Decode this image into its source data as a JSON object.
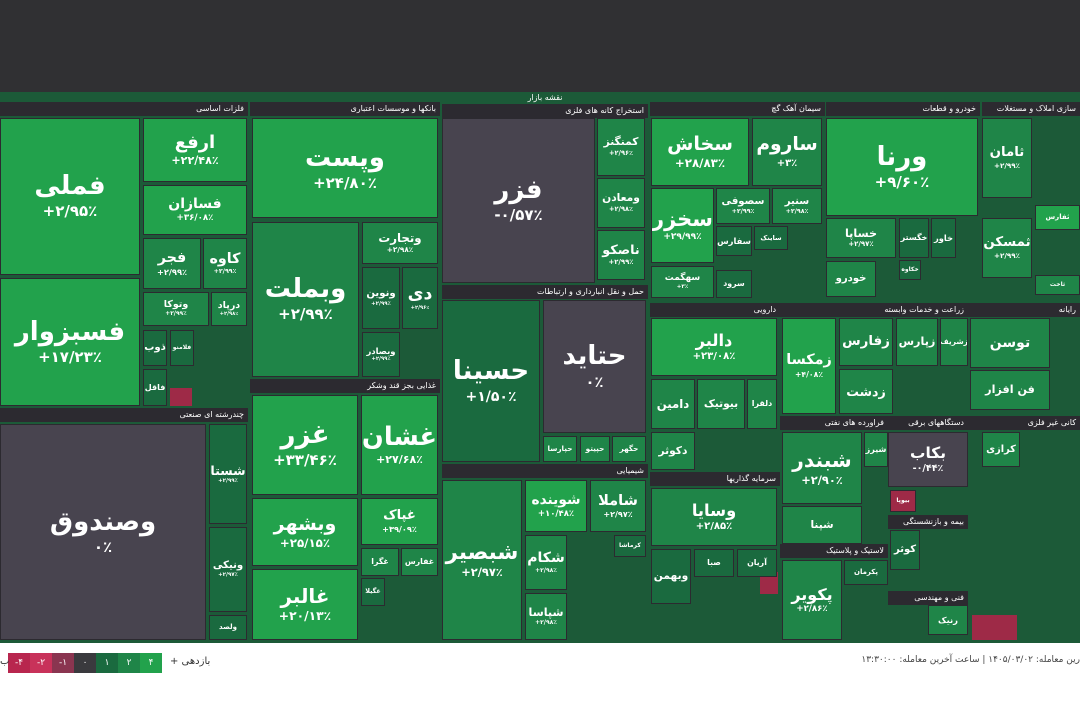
{
  "header": {
    "title": "نقشه بازار"
  },
  "sectors": [
    {
      "name": "فلزات اساسی",
      "tiles": [
        {
          "symbol": "فملی",
          "change": "+۲/۹۵٪"
        },
        {
          "symbol": "فسبزوار",
          "change": "+۱۷/۲۳٪"
        },
        {
          "symbol": "ارفع",
          "change": "+۲۲/۴۸٪"
        },
        {
          "symbol": "فسازان",
          "change": "+۳۶/۰۸٪"
        },
        {
          "symbol": "فجر",
          "change": "+۲/۹۹٪"
        },
        {
          "symbol": "کاوه",
          "change": "+۲/۹۹٪"
        },
        {
          "symbol": "وتوکا",
          "change": "+۲/۹۹٪"
        },
        {
          "symbol": "درپاد",
          "change": "+۲/۹۸٪"
        },
        {
          "symbol": "ذوب"
        },
        {
          "symbol": "فلامنو"
        },
        {
          "symbol": "فاقل"
        }
      ]
    },
    {
      "name": "چندرشته ای صنعتی",
      "tiles": [
        {
          "symbol": "وصندوق",
          "change": "۰٪"
        },
        {
          "symbol": "شستا",
          "change": "+۲/۹۹٪"
        },
        {
          "symbol": "ونیکی",
          "change": "+۲/۹۷٪"
        },
        {
          "symbol": "ولصد"
        }
      ]
    },
    {
      "name": "بانکها و موسسات اعتباری",
      "tiles": [
        {
          "symbol": "وپست",
          "change": "+۲۴/۸۰٪"
        },
        {
          "symbol": "وبملت",
          "change": "+۲/۹۹٪"
        },
        {
          "symbol": "وتجارت",
          "change": "+۲/۹۸٪"
        },
        {
          "symbol": "ونوین",
          "change": "+۲/۹۹٪"
        },
        {
          "symbol": "دی",
          "change": "+۲/۹۶٪"
        },
        {
          "symbol": "وبصادر",
          "change": "+۲/۹۹٪"
        }
      ]
    },
    {
      "name": "غذایی بجز قند وشکر",
      "tiles": [
        {
          "symbol": "غزر",
          "change": "+۳۳/۴۶٪"
        },
        {
          "symbol": "غشان",
          "change": "+۲۷/۶۸٪"
        },
        {
          "symbol": "وبشهر",
          "change": "+۲۵/۱۵٪"
        },
        {
          "symbol": "غالبر",
          "change": "+۲۰/۱۳٪"
        },
        {
          "symbol": "غپاک",
          "change": "+۳۹/۰۹٪"
        },
        {
          "symbol": "غگرا"
        },
        {
          "symbol": "غفارس"
        },
        {
          "symbol": "غگیلا"
        }
      ]
    },
    {
      "name": "استخراج کانه های فلزی",
      "tiles": [
        {
          "symbol": "فزر",
          "change": "-۰/۵۷٪"
        },
        {
          "symbol": "کمنگنز",
          "change": "+۲/۹۶٪"
        },
        {
          "symbol": "ومعادن",
          "change": "+۲/۹۸٪"
        },
        {
          "symbol": "ناصکو",
          "change": "+۲/۹۹٪"
        }
      ]
    },
    {
      "name": "حمل و نقل انبارداری و ارتباطات",
      "tiles": [
        {
          "symbol": "حسینا",
          "change": "+۱/۵۰٪"
        },
        {
          "symbol": "حتاید",
          "change": "۰٪"
        },
        {
          "symbol": "حپارسا"
        },
        {
          "symbol": "حپیتو"
        },
        {
          "symbol": "حگهر"
        }
      ]
    },
    {
      "name": "شیمیایی",
      "tiles": [
        {
          "symbol": "شبصیر",
          "change": "+۲/۹۷٪"
        },
        {
          "symbol": "شوینده",
          "change": "+۱۰/۴۸٪"
        },
        {
          "symbol": "شاملا",
          "change": "+۲/۹۷٪"
        },
        {
          "symbol": "شکام",
          "change": "+۲/۹۸٪"
        },
        {
          "symbol": "شپاسا",
          "change": "+۲/۹۸٪"
        },
        {
          "symbol": "کرماشا"
        }
      ]
    },
    {
      "name": "سیمان آهک گچ",
      "tiles": [
        {
          "symbol": "سخاش",
          "change": "+۲۸/۸۳٪"
        },
        {
          "symbol": "ساروم",
          "change": "+۳٪"
        },
        {
          "symbol": "سخزر",
          "change": "+۲۹/۹۹٪"
        },
        {
          "symbol": "سصوفی",
          "change": "+۲/۹۹٪"
        },
        {
          "symbol": "سنیر",
          "change": "+۲/۹۸٪"
        },
        {
          "symbol": "سهگمت",
          "change": "+۳٪"
        },
        {
          "symbol": "سفارس"
        },
        {
          "symbol": "ساینک"
        },
        {
          "symbol": "سرود"
        }
      ]
    },
    {
      "name": "خودرو و قطعات",
      "tiles": [
        {
          "symbol": "ورنا",
          "change": "+۹/۶۰٪"
        },
        {
          "symbol": "خساپا",
          "change": "+۲/۹۷٪"
        },
        {
          "symbol": "خگستر"
        },
        {
          "symbol": "خاور"
        },
        {
          "symbol": "خودرو"
        },
        {
          "symbol": "خکاوه"
        }
      ]
    },
    {
      "name": "سازی املاک و مستغلات",
      "tiles": [
        {
          "symbol": "ثامان",
          "change": "+۲/۹۹٪"
        },
        {
          "symbol": "ثمسکن",
          "change": "+۲/۹۹٪"
        },
        {
          "symbol": "ثفارس"
        },
        {
          "symbol": "ثاخت"
        }
      ]
    },
    {
      "name": "دارویی",
      "tiles": [
        {
          "symbol": "دالبر",
          "change": "+۲۳/۰۸٪"
        },
        {
          "symbol": "دامین"
        },
        {
          "symbol": "بیوتیک"
        },
        {
          "symbol": "دلقرا"
        },
        {
          "symbol": "دکوثر"
        }
      ]
    },
    {
      "name": "سرمایه گذاریها",
      "tiles": [
        {
          "symbol": "وسایا",
          "change": "+۲/۸۵٪"
        },
        {
          "symbol": "وبهمن"
        },
        {
          "symbol": "صبا"
        },
        {
          "symbol": "آریان"
        }
      ]
    },
    {
      "name": "زراعت و خدمات وابسته",
      "tiles": [
        {
          "symbol": "زمکسا",
          "change": "+۴/۰۸٪"
        },
        {
          "symbol": "زفارس"
        },
        {
          "symbol": "زپارس"
        },
        {
          "symbol": "زشریف"
        },
        {
          "symbol": "زدشت"
        }
      ]
    },
    {
      "name": "فراورده های نفتی",
      "tiles": [
        {
          "symbol": "شبندر",
          "change": "+۲/۹۰٪"
        },
        {
          "symbol": "شیرز"
        },
        {
          "symbol": "شپنا"
        }
      ]
    },
    {
      "name": "لاستیک و پلاستیک",
      "tiles": [
        {
          "symbol": "پکویر",
          "change": "+۲/۸۶٪"
        },
        {
          "symbol": "پکرمان"
        }
      ]
    },
    {
      "name": "دستگاههای برقی",
      "tiles": [
        {
          "symbol": "بکاب",
          "change": "-۰/۴۴٪"
        },
        {
          "symbol": "بیوپا"
        }
      ]
    },
    {
      "name": "بیمه و بازنشستگی",
      "tiles": [
        {
          "symbol": "کوثر"
        }
      ]
    },
    {
      "name": "فنی و مهندسی",
      "tiles": [
        {
          "symbol": "رنیک"
        }
      ]
    },
    {
      "name": "رایانه",
      "tiles": [
        {
          "symbol": "توسن"
        },
        {
          "symbol": "فن افزار"
        }
      ]
    },
    {
      "name": "کانی غیر فلزی",
      "tiles": [
        {
          "symbol": "کرازی"
        }
      ]
    }
  ],
  "legend": {
    "label": "بازدهی +",
    "steps": [
      "-۴",
      "-۲",
      "-۱",
      "۰",
      "۱",
      "۲",
      "۴"
    ]
  },
  "footer": "رین معامله: ۱۴۰۵/۰۳/۰۲ | ساعت آخرین معامله: ۱۳:۳۰:۰۰"
}
